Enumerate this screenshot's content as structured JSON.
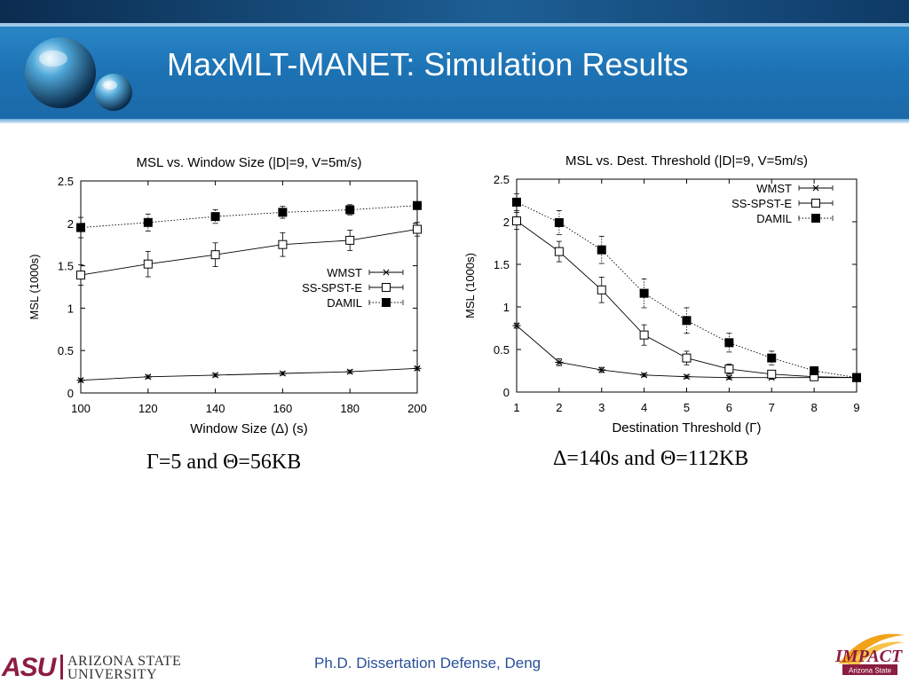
{
  "slide": {
    "title": "MaxMLT-MANET: Simulation Results",
    "footer": "Ph.D. Dissertation Defense, Deng",
    "university_logo": {
      "line1": "ARIZONA STATE",
      "line2": "UNIVERSITY",
      "mark": "ASU",
      "color": "#8c1d40"
    },
    "impact_logo": {
      "text": "IMPACT",
      "subtext": "Arizona State"
    }
  },
  "captions": [
    "Γ=5 and Θ=56KB",
    "Δ=140s and Θ=112KB"
  ],
  "chart_data": [
    {
      "type": "line",
      "title": "MSL vs. Window Size (|D|=9, V=5m/s)",
      "xlabel": "Window Size (Δ) (s)",
      "ylabel": "MSL (1000s)",
      "x": [
        100,
        120,
        140,
        160,
        180,
        200
      ],
      "xticks": [
        "100",
        "120",
        "140",
        "160",
        "180",
        "200"
      ],
      "yticks": [
        "0",
        "0.5",
        "1",
        "1.5",
        "2",
        "2.5"
      ],
      "xlim": [
        100,
        200
      ],
      "ylim": [
        0,
        2.5
      ],
      "legend_position": "center-right",
      "series": [
        {
          "name": "WMST",
          "marker": "star",
          "style": "solid",
          "values": [
            0.15,
            0.19,
            0.21,
            0.23,
            0.25,
            0.29
          ],
          "errors": [
            0.02,
            0.02,
            0.02,
            0.02,
            0.02,
            0.02
          ]
        },
        {
          "name": "SS-SPST-E",
          "marker": "open-square",
          "style": "solid",
          "values": [
            1.39,
            1.52,
            1.63,
            1.75,
            1.8,
            1.93
          ],
          "errors": [
            0.12,
            0.15,
            0.14,
            0.14,
            0.12,
            0.08
          ]
        },
        {
          "name": "DAMIL",
          "marker": "filled-square",
          "style": "dotted",
          "values": [
            1.95,
            2.01,
            2.08,
            2.13,
            2.16,
            2.21
          ],
          "errors": [
            0.12,
            0.1,
            0.08,
            0.07,
            0.06,
            0.04
          ]
        }
      ]
    },
    {
      "type": "line",
      "title": "MSL vs. Dest. Threshold (|D|=9, V=5m/s)",
      "xlabel": "Destination Threshold (Γ)",
      "ylabel": "MSL (1000s)",
      "x": [
        1,
        2,
        3,
        4,
        5,
        6,
        7,
        8,
        9
      ],
      "xticks": [
        "1",
        "2",
        "3",
        "4",
        "5",
        "6",
        "7",
        "8",
        "9"
      ],
      "yticks": [
        "0",
        "0.5",
        "1",
        "1.5",
        "2",
        "2.5"
      ],
      "xlim": [
        1,
        9
      ],
      "ylim": [
        0,
        2.5
      ],
      "legend_position": "top-right",
      "series": [
        {
          "name": "WMST",
          "marker": "star",
          "style": "solid",
          "values": [
            0.78,
            0.35,
            0.26,
            0.2,
            0.18,
            0.17,
            0.17,
            0.17,
            0.17
          ],
          "errors": [
            0.03,
            0.04,
            0.03,
            0.02,
            0.02,
            0.02,
            0.02,
            0.02,
            0.02
          ]
        },
        {
          "name": "SS-SPST-E",
          "marker": "open-square",
          "style": "solid",
          "values": [
            2.01,
            1.65,
            1.2,
            0.67,
            0.4,
            0.27,
            0.21,
            0.18,
            0.17
          ],
          "errors": [
            0.1,
            0.12,
            0.15,
            0.12,
            0.08,
            0.06,
            0.04,
            0.03,
            0.02
          ]
        },
        {
          "name": "DAMIL",
          "marker": "filled-square",
          "style": "dotted",
          "values": [
            2.23,
            1.99,
            1.67,
            1.16,
            0.84,
            0.58,
            0.4,
            0.25,
            0.17
          ],
          "errors": [
            0.1,
            0.14,
            0.16,
            0.17,
            0.15,
            0.11,
            0.08,
            0.04,
            0.02
          ]
        }
      ]
    }
  ]
}
